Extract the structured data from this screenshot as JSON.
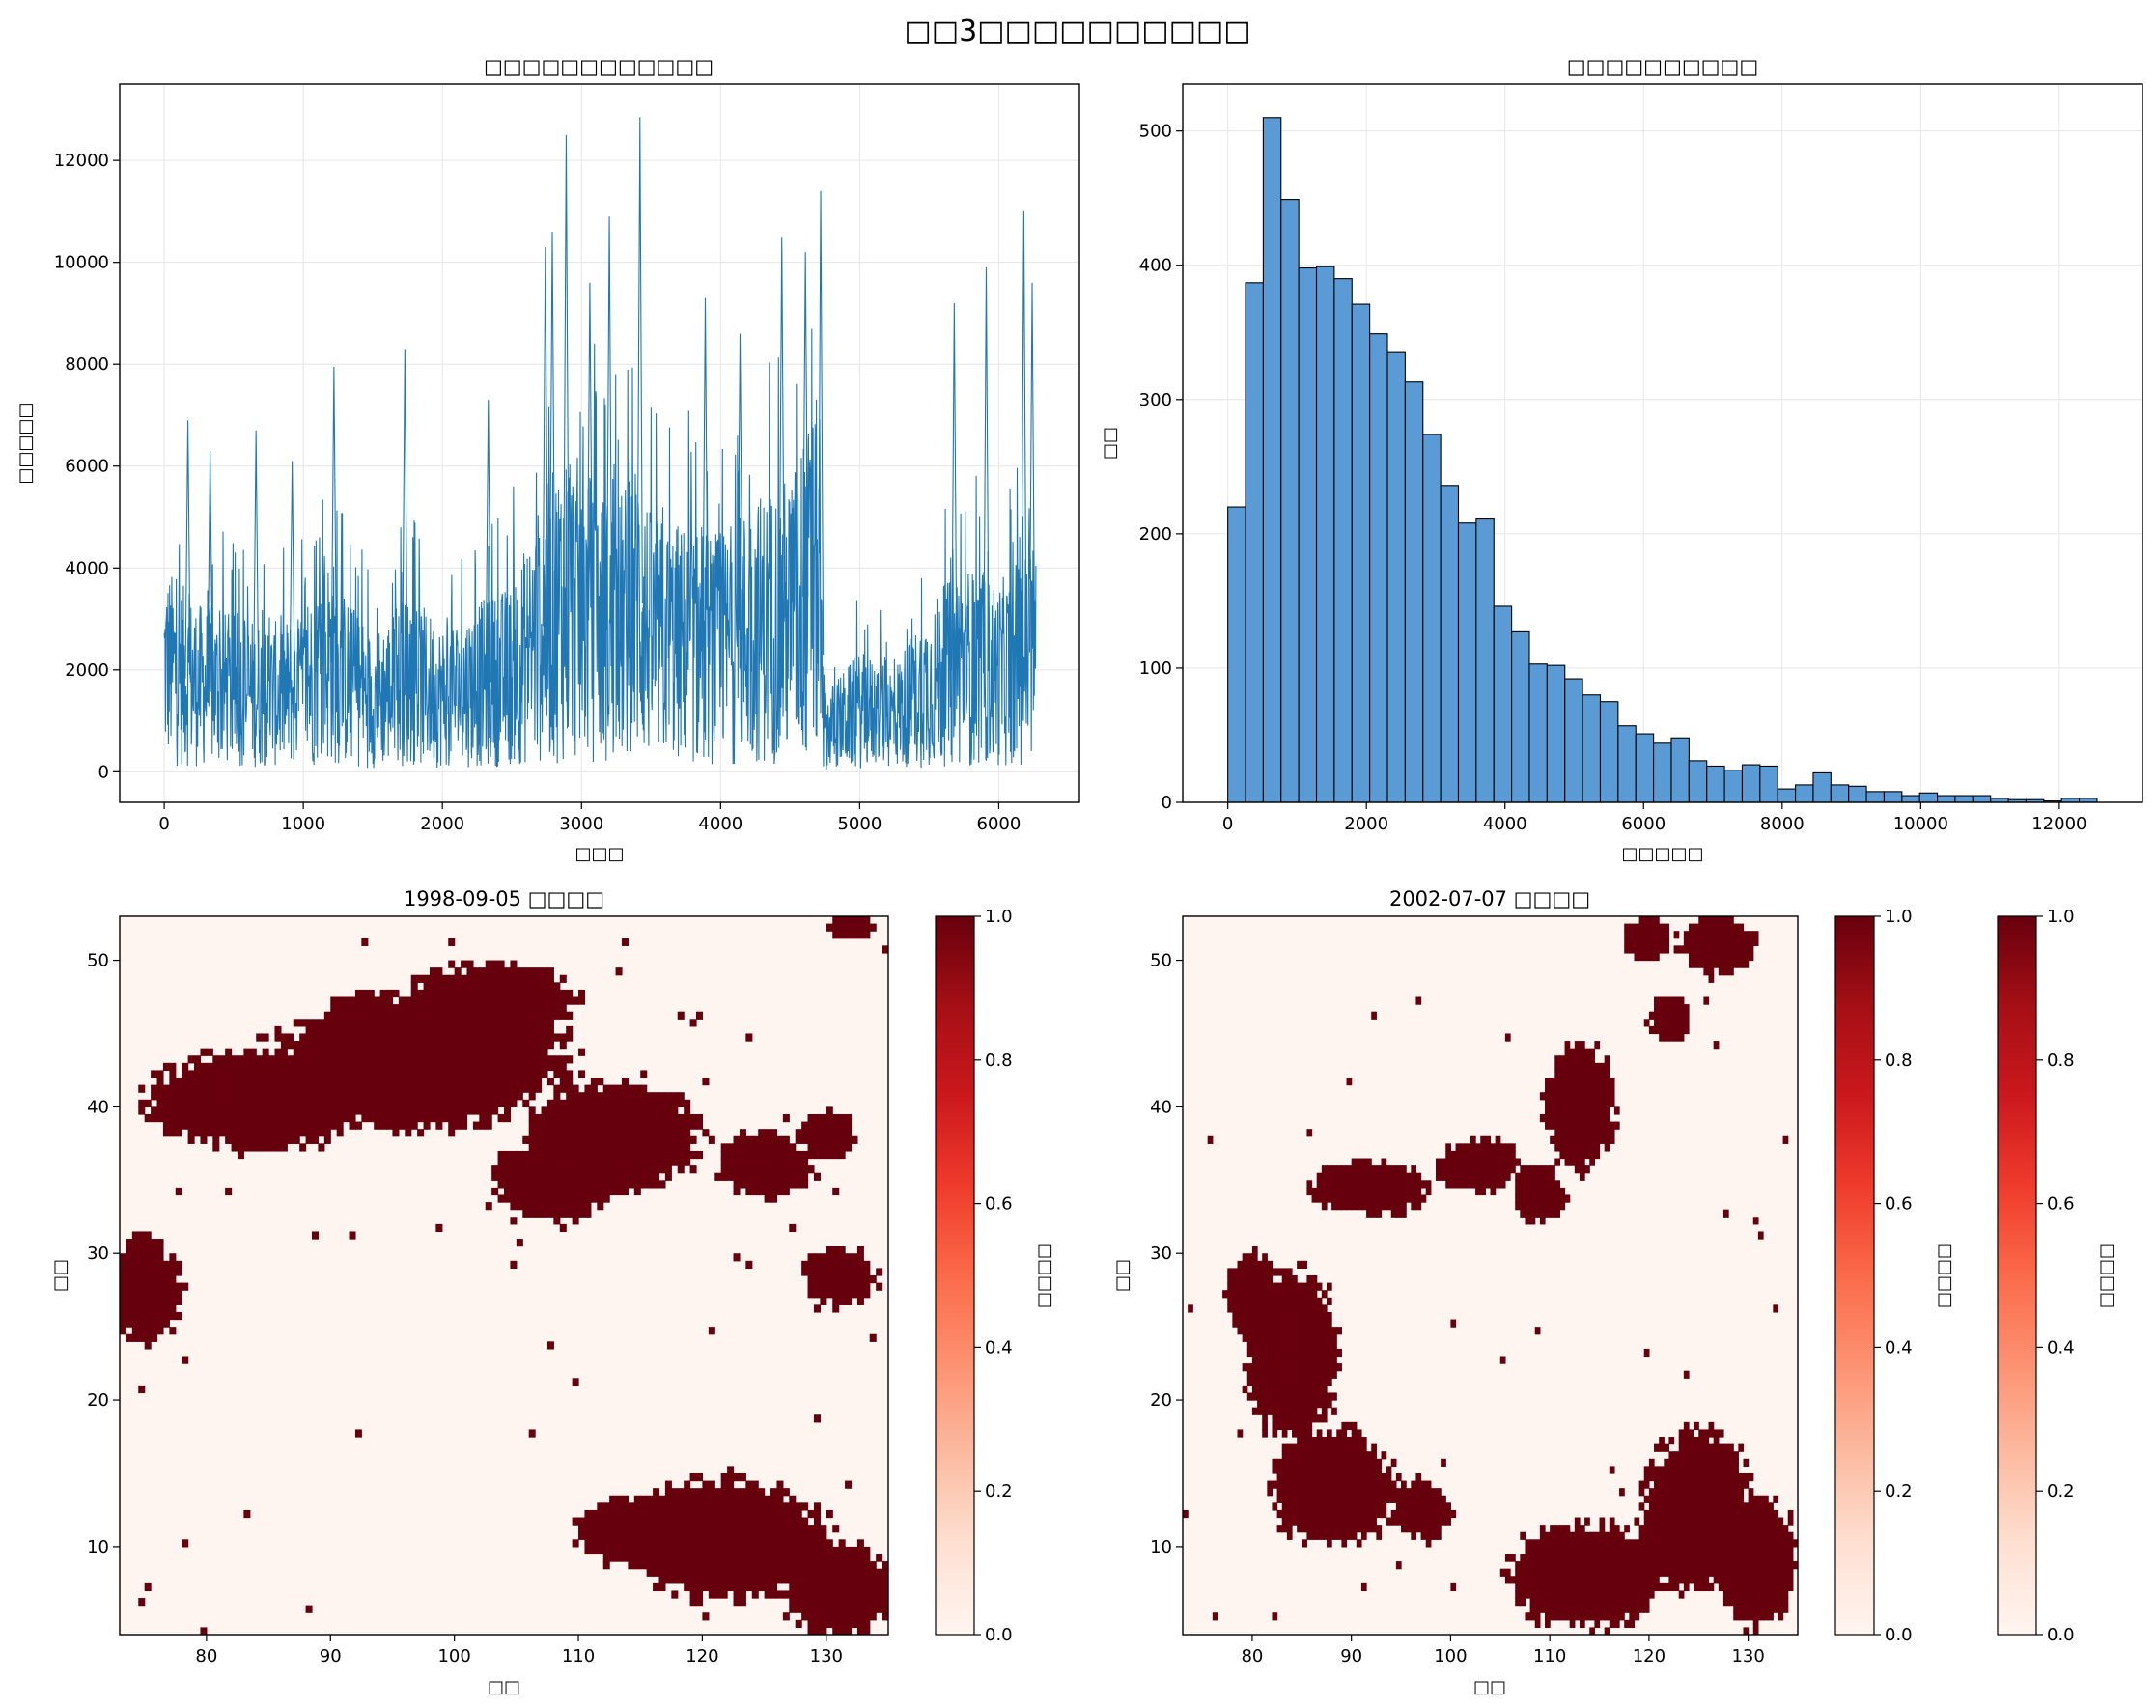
{
  "figure": {
    "suptitle": "□□3□□□□□□□□□□"
  },
  "colors": {
    "line": "#1f77b4",
    "hist_fill": "#5b9bd5",
    "hist_edge": "#000000",
    "grid": "#e6e6e6",
    "reds_low": "#fff5f0",
    "reds_high": "#67000d"
  },
  "chart_data": [
    {
      "type": "line",
      "title": "□□□□□□□□□□□□",
      "xlabel": "□□□",
      "ylabel": "□□□□□",
      "xlim": [
        -320,
        6580
      ],
      "ylim": [
        -600,
        13500
      ],
      "xticks": [
        0,
        1000,
        2000,
        3000,
        4000,
        5000,
        6000
      ],
      "yticks": [
        0,
        2000,
        4000,
        6000,
        8000,
        10000,
        12000
      ],
      "grid": true,
      "n_points": 6270,
      "segments": [
        {
          "x": [
            0,
            250,
            500,
            750,
            1000,
            1200,
            1250,
            1500,
            1750,
            2000,
            2250,
            2500,
            2750,
            2900,
            3000,
            3250,
            3420,
            3500,
            3750,
            4000,
            4250,
            4500,
            4700,
            4740,
            5000,
            5250,
            5500,
            5750,
            6000,
            6270
          ],
          "mean": [
            2100,
            1700,
            1600,
            1500,
            1600,
            2300,
            1900,
            1400,
            1800,
            1500,
            1700,
            1900,
            2900,
            3400,
            3100,
            2700,
            3300,
            2600,
            2500,
            2400,
            2800,
            3000,
            3800,
            800,
            1200,
            1100,
            1700,
            2100,
            1900,
            2400
          ]
        }
      ],
      "peaks": [
        {
          "x": 170,
          "y": 6900
        },
        {
          "x": 330,
          "y": 6300
        },
        {
          "x": 660,
          "y": 6700
        },
        {
          "x": 920,
          "y": 6100
        },
        {
          "x": 1220,
          "y": 7950
        },
        {
          "x": 1730,
          "y": 8300
        },
        {
          "x": 2330,
          "y": 7300
        },
        {
          "x": 2740,
          "y": 10300
        },
        {
          "x": 2790,
          "y": 10600
        },
        {
          "x": 2890,
          "y": 12500
        },
        {
          "x": 3060,
          "y": 9600
        },
        {
          "x": 3200,
          "y": 10900
        },
        {
          "x": 3420,
          "y": 12850
        },
        {
          "x": 3890,
          "y": 9300
        },
        {
          "x": 4140,
          "y": 8600
        },
        {
          "x": 4440,
          "y": 10500
        },
        {
          "x": 4610,
          "y": 10200
        },
        {
          "x": 4720,
          "y": 11400
        },
        {
          "x": 5680,
          "y": 9200
        },
        {
          "x": 5910,
          "y": 9900
        },
        {
          "x": 6180,
          "y": 11000
        },
        {
          "x": 6240,
          "y": 9600
        }
      ]
    },
    {
      "type": "bar",
      "title": "□□□□□□□□□□",
      "xlabel": "□□□□□",
      "ylabel": "□□",
      "xlim": [
        -650,
        13200
      ],
      "ylim": [
        0,
        535
      ],
      "xticks": [
        0,
        2000,
        4000,
        6000,
        8000,
        10000,
        12000
      ],
      "yticks": [
        0,
        100,
        200,
        300,
        400,
        500
      ],
      "grid": true,
      "bin_start": 0,
      "bin_width": 256,
      "values": [
        220,
        387,
        510,
        449,
        398,
        399,
        390,
        371,
        349,
        335,
        313,
        274,
        236,
        208,
        211,
        146,
        127,
        103,
        102,
        92,
        80,
        75,
        57,
        51,
        44,
        48,
        31,
        27,
        24,
        28,
        27,
        10,
        13,
        22,
        13,
        12,
        8,
        8,
        5,
        7,
        5,
        5,
        5,
        3,
        2,
        2,
        1,
        3,
        3
      ]
    },
    {
      "type": "heatmap",
      "title": "1998-09-05 □□□□",
      "xlabel": "□□",
      "ylabel": "□□",
      "xlim": [
        73,
        135
      ],
      "ylim": [
        4,
        53
      ],
      "xticks": [
        80,
        90,
        100,
        110,
        120,
        130
      ],
      "yticks": [
        10,
        20,
        30,
        40,
        50
      ],
      "colormap": "Reds",
      "colorbar": {
        "label": "□□□□",
        "range": [
          0,
          1
        ],
        "ticks": [
          "0.0",
          "0.2",
          "0.4",
          "0.6",
          "0.8",
          "1.0"
        ]
      },
      "regions": [
        {
          "cx": 97,
          "cy": 43,
          "rx": 12,
          "ry": 4.5
        },
        {
          "cx": 84,
          "cy": 40.5,
          "rx": 9,
          "ry": 3.3
        },
        {
          "cx": 103,
          "cy": 47,
          "rx": 7,
          "ry": 2.7
        },
        {
          "cx": 113,
          "cy": 38,
          "rx": 7,
          "ry": 3.6
        },
        {
          "cx": 108,
          "cy": 35,
          "rx": 5,
          "ry": 3
        },
        {
          "cx": 125,
          "cy": 36,
          "rx": 4,
          "ry": 2.2
        },
        {
          "cx": 130,
          "cy": 38,
          "rx": 2.2,
          "ry": 1.6
        },
        {
          "cx": 75,
          "cy": 27.5,
          "rx": 3,
          "ry": 3.5
        },
        {
          "cx": 131,
          "cy": 28.5,
          "rx": 3,
          "ry": 2
        },
        {
          "cx": 122,
          "cy": 10.5,
          "rx": 8,
          "ry": 4.2
        },
        {
          "cx": 114,
          "cy": 11,
          "rx": 4,
          "ry": 2.4
        },
        {
          "cx": 131,
          "cy": 7,
          "rx": 4.5,
          "ry": 3.2
        },
        {
          "cx": 132,
          "cy": 52.3,
          "rx": 2,
          "ry": 0.8
        },
        {
          "cx": 93,
          "cy": 46,
          "rx": 3,
          "ry": 2
        }
      ]
    },
    {
      "type": "heatmap",
      "title": "2002-07-07 □□□□",
      "xlabel": "□□",
      "ylabel": "□□",
      "xlim": [
        73,
        135
      ],
      "ylim": [
        4,
        53
      ],
      "xticks": [
        80,
        90,
        100,
        110,
        120,
        130
      ],
      "yticks": [
        10,
        20,
        30,
        40,
        50
      ],
      "colormap": "Reds",
      "colorbars": [
        {
          "label": "□□□□",
          "range": [
            0,
            1
          ],
          "ticks": [
            "0.0",
            "0.2",
            "0.4",
            "0.6",
            "0.8",
            "1.0"
          ]
        },
        {
          "label": "□□□□",
          "range": [
            0,
            1
          ],
          "ticks": [
            "0.0",
            "0.2",
            "0.4",
            "0.6",
            "0.8",
            "1.0"
          ]
        }
      ],
      "regions": [
        {
          "cx": 84,
          "cy": 23,
          "rx": 4.5,
          "ry": 6
        },
        {
          "cx": 88,
          "cy": 14,
          "rx": 6,
          "ry": 4
        },
        {
          "cx": 80,
          "cy": 27,
          "rx": 2.5,
          "ry": 3
        },
        {
          "cx": 97,
          "cy": 12.5,
          "rx": 3,
          "ry": 2
        },
        {
          "cx": 114,
          "cy": 8,
          "rx": 8,
          "ry": 3.5
        },
        {
          "cx": 125,
          "cy": 12.5,
          "rx": 5.5,
          "ry": 5.5
        },
        {
          "cx": 131,
          "cy": 9,
          "rx": 4,
          "ry": 4.5
        },
        {
          "cx": 92,
          "cy": 34.5,
          "rx": 6,
          "ry": 1.8
        },
        {
          "cx": 103,
          "cy": 36,
          "rx": 4,
          "ry": 2
        },
        {
          "cx": 113,
          "cy": 40,
          "rx": 3.5,
          "ry": 4.2
        },
        {
          "cx": 109,
          "cy": 34,
          "rx": 2.5,
          "ry": 2
        },
        {
          "cx": 127,
          "cy": 51,
          "rx": 4,
          "ry": 2
        },
        {
          "cx": 120,
          "cy": 51.5,
          "rx": 2.5,
          "ry": 1.5
        },
        {
          "cx": 122,
          "cy": 46,
          "rx": 2,
          "ry": 1.5
        }
      ]
    }
  ]
}
